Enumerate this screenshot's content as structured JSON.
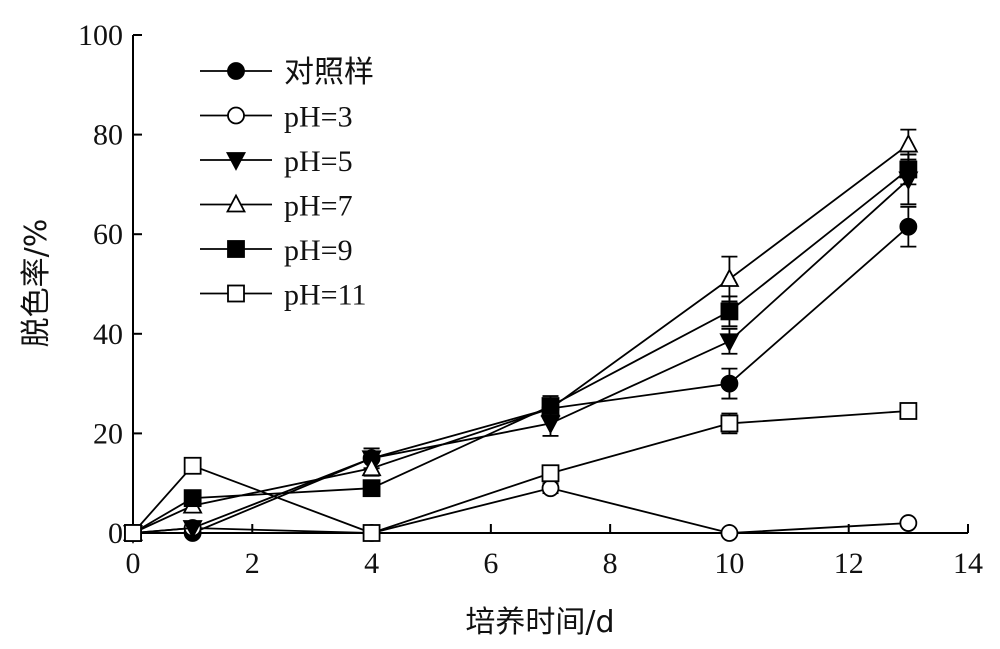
{
  "chart_data": {
    "type": "line",
    "title": "",
    "xlabel": "培养时间/d",
    "ylabel": "脱色率/%",
    "xlim": [
      0,
      14
    ],
    "ylim": [
      0,
      100
    ],
    "xticks": [
      0,
      2,
      4,
      6,
      8,
      10,
      12,
      14
    ],
    "yticks": [
      0,
      20,
      40,
      60,
      80,
      100
    ],
    "grid": false,
    "legend_position": "top-left",
    "x": [
      0,
      1,
      4,
      7,
      10,
      13
    ],
    "series": [
      {
        "name": "对照样",
        "marker": "circle-filled",
        "values": [
          0,
          0,
          15,
          25,
          30,
          61.5
        ],
        "errors": [
          0,
          0,
          2,
          2,
          3,
          4
        ]
      },
      {
        "name": "pH=3",
        "marker": "circle-open",
        "values": [
          0,
          1,
          0,
          9,
          0,
          2
        ],
        "errors": [
          0,
          0,
          0,
          1,
          0,
          0.5
        ]
      },
      {
        "name": "pH=5",
        "marker": "triangle-down-filled",
        "values": [
          0,
          1,
          15,
          22,
          38.5,
          71
        ],
        "errors": [
          0,
          0,
          2,
          2.5,
          2.5,
          5
        ]
      },
      {
        "name": "pH=7",
        "marker": "triangle-up-open",
        "values": [
          0,
          5.5,
          13,
          25,
          51,
          78
        ],
        "errors": [
          0,
          1,
          1.5,
          2,
          4.5,
          3
        ]
      },
      {
        "name": "pH=9",
        "marker": "square-filled",
        "values": [
          0,
          7,
          9,
          25.5,
          44.5,
          73
        ],
        "errors": [
          0,
          1,
          1,
          2,
          3,
          3
        ]
      },
      {
        "name": "pH=11",
        "marker": "square-open",
        "values": [
          0,
          13.5,
          0,
          12,
          22,
          24.5
        ],
        "errors": [
          0,
          1.5,
          0,
          1,
          2,
          1
        ]
      }
    ]
  }
}
